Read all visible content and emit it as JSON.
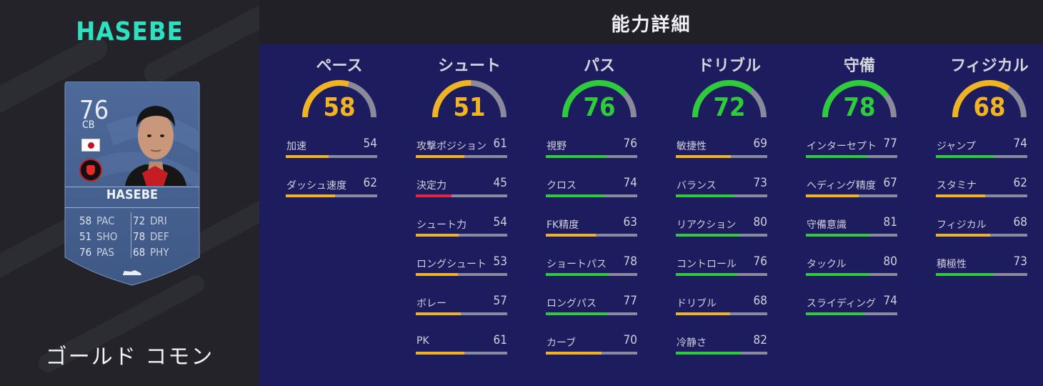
{
  "colors": {
    "good": "#2ecc3a",
    "average": "#f0b323",
    "poor": "#e0283e",
    "track": "#8a8a9c"
  },
  "player": {
    "title": "HASEBE",
    "rarity": "ゴールド コモン",
    "card": {
      "rating": "76",
      "position": "CB",
      "name": "HASEBE",
      "nation_icon": "japan-flag-icon",
      "club_icon": "eintracht-frankfurt-crest-icon",
      "boot_icon": "boot-icon",
      "stats": [
        {
          "left_value": "58",
          "left_label": "PAC",
          "right_value": "72",
          "right_label": "DRI"
        },
        {
          "left_value": "51",
          "left_label": "SHO",
          "right_value": "78",
          "right_label": "DEF"
        },
        {
          "left_value": "76",
          "left_label": "PAS",
          "right_value": "68",
          "right_label": "PHY"
        }
      ]
    }
  },
  "header": {
    "title": "能力詳細"
  },
  "categories": [
    {
      "name": "ペース",
      "value": 58,
      "color": "#f0b323",
      "attributes": [
        {
          "label": "加速",
          "value": 54,
          "color": "#f0b323"
        },
        {
          "label": "ダッシュ速度",
          "value": 62,
          "color": "#f0b323"
        }
      ]
    },
    {
      "name": "シュート",
      "value": 51,
      "color": "#f0b323",
      "attributes": [
        {
          "label": "攻撃ポジション",
          "value": 61,
          "color": "#f0b323"
        },
        {
          "label": "決定力",
          "value": 45,
          "color": "#e0283e"
        },
        {
          "label": "シュート力",
          "value": 54,
          "color": "#f0b323"
        },
        {
          "label": "ロングシュート",
          "value": 53,
          "color": "#f0b323"
        },
        {
          "label": "ボレー",
          "value": 57,
          "color": "#f0b323"
        },
        {
          "label": "PK",
          "value": 61,
          "color": "#f0b323"
        }
      ]
    },
    {
      "name": "パス",
      "value": 76,
      "color": "#2ecc3a",
      "attributes": [
        {
          "label": "視野",
          "value": 76,
          "color": "#2ecc3a"
        },
        {
          "label": "クロス",
          "value": 74,
          "color": "#2ecc3a"
        },
        {
          "label": "FK精度",
          "value": 63,
          "color": "#f0b323"
        },
        {
          "label": "ショートパス",
          "value": 78,
          "color": "#2ecc3a"
        },
        {
          "label": "ロングパス",
          "value": 77,
          "color": "#2ecc3a"
        },
        {
          "label": "カーブ",
          "value": 70,
          "color": "#f0b323"
        }
      ]
    },
    {
      "name": "ドリブル",
      "value": 72,
      "color": "#2ecc3a",
      "attributes": [
        {
          "label": "敏捷性",
          "value": 69,
          "color": "#f0b323"
        },
        {
          "label": "バランス",
          "value": 73,
          "color": "#2ecc3a"
        },
        {
          "label": "リアクション",
          "value": 80,
          "color": "#2ecc3a"
        },
        {
          "label": "コントロール",
          "value": 76,
          "color": "#2ecc3a"
        },
        {
          "label": "ドリブル",
          "value": 68,
          "color": "#f0b323"
        },
        {
          "label": "冷静さ",
          "value": 82,
          "color": "#2ecc3a"
        }
      ]
    },
    {
      "name": "守備",
      "value": 78,
      "color": "#2ecc3a",
      "attributes": [
        {
          "label": "インターセプト",
          "value": 77,
          "color": "#2ecc3a"
        },
        {
          "label": "ヘディング精度",
          "value": 67,
          "color": "#f0b323"
        },
        {
          "label": "守備意識",
          "value": 81,
          "color": "#2ecc3a"
        },
        {
          "label": "タックル",
          "value": 80,
          "color": "#2ecc3a"
        },
        {
          "label": "スライディング",
          "value": 74,
          "color": "#2ecc3a"
        }
      ]
    },
    {
      "name": "フィジカル",
      "value": 68,
      "color": "#f0b323",
      "attributes": [
        {
          "label": "ジャンプ",
          "value": 74,
          "color": "#2ecc3a"
        },
        {
          "label": "スタミナ",
          "value": 62,
          "color": "#f0b323"
        },
        {
          "label": "フィジカル",
          "value": 68,
          "color": "#f0b323"
        },
        {
          "label": "積極性",
          "value": 73,
          "color": "#2ecc3a"
        }
      ]
    }
  ]
}
